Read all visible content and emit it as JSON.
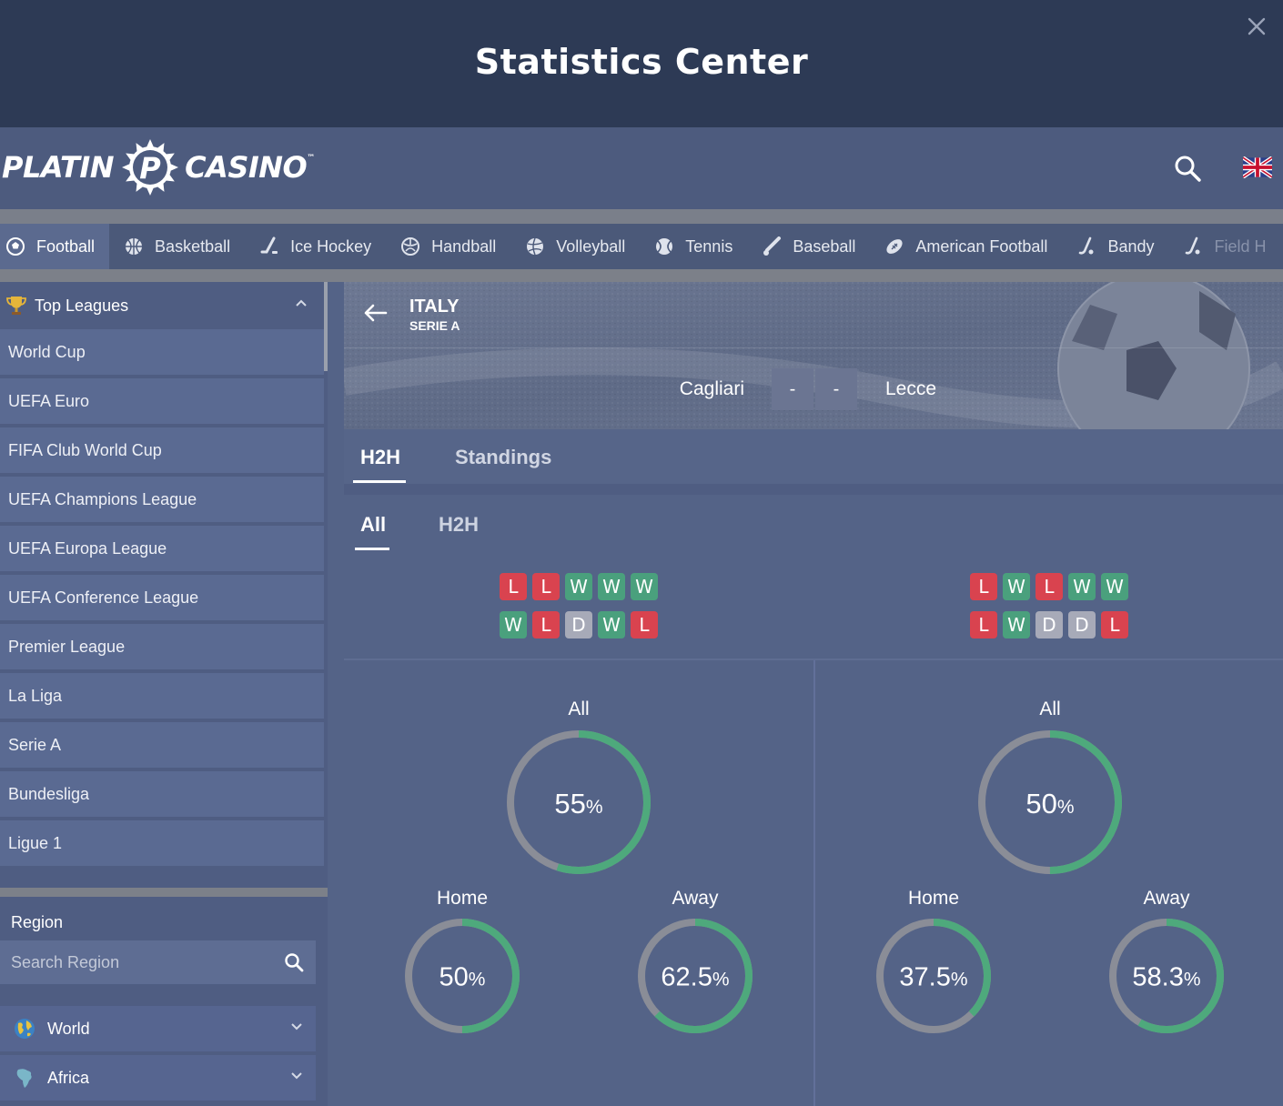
{
  "title": "Statistics Center",
  "brand": {
    "left": "PLATIN",
    "mark": "P",
    "right": "CASINO",
    "tm": "™"
  },
  "sports": [
    {
      "label": "Football",
      "icon": "football-icon",
      "active": true
    },
    {
      "label": "Basketball",
      "icon": "basketball-icon"
    },
    {
      "label": "Ice Hockey",
      "icon": "hockey-stick-icon"
    },
    {
      "label": "Handball",
      "icon": "handball-icon"
    },
    {
      "label": "Volleyball",
      "icon": "volleyball-icon"
    },
    {
      "label": "Tennis",
      "icon": "tennis-ball-icon"
    },
    {
      "label": "Baseball",
      "icon": "baseball-icon"
    },
    {
      "label": "American Football",
      "icon": "american-football-icon"
    },
    {
      "label": "Bandy",
      "icon": "bandy-icon"
    },
    {
      "label": "Field H",
      "icon": "field-hockey-icon"
    }
  ],
  "sidebar": {
    "top_leagues_label": "Top Leagues",
    "leagues": [
      "World Cup",
      "UEFA Euro",
      "FIFA Club World Cup",
      "UEFA Champions League",
      "UEFA Europa League",
      "UEFA Conference League",
      "Premier League",
      "La Liga",
      "Serie A",
      "Bundesliga",
      "Ligue 1"
    ],
    "region_label": "Region",
    "region_search_placeholder": "Search Region",
    "regions": [
      "World",
      "Africa"
    ]
  },
  "match": {
    "country": "ITALY",
    "league": "SERIE A",
    "home_team": "Cagliari",
    "away_team": "Lecce",
    "home_score": "-",
    "away_score": "-"
  },
  "tabs": [
    "H2H",
    "Standings"
  ],
  "subtabs": [
    "All",
    "H2H"
  ],
  "form": {
    "home": [
      [
        "L",
        "L",
        "W",
        "W",
        "W"
      ],
      [
        "W",
        "L",
        "D",
        "W",
        "L"
      ]
    ],
    "away": [
      [
        "L",
        "W",
        "L",
        "W",
        "W"
      ],
      [
        "L",
        "W",
        "D",
        "D",
        "L"
      ]
    ]
  },
  "stats": {
    "home": {
      "all": {
        "label": "All",
        "value": "55",
        "percent": 55
      },
      "home": {
        "label": "Home",
        "value": "50",
        "percent": 50
      },
      "away": {
        "label": "Away",
        "value": "62.5",
        "percent": 62.5
      }
    },
    "away": {
      "all": {
        "label": "All",
        "value": "50",
        "percent": 50
      },
      "home": {
        "label": "Home",
        "value": "37.5",
        "percent": 37.5
      },
      "away": {
        "label": "Away",
        "value": "58.3",
        "percent": 58.3
      }
    },
    "percent_sign": "%"
  },
  "colors": {
    "win": "#4aa07d",
    "loss": "#d9434f",
    "draw": "#a7aab8",
    "donut_fill": "#4ea97c",
    "donut_track": "#8a8d97"
  }
}
